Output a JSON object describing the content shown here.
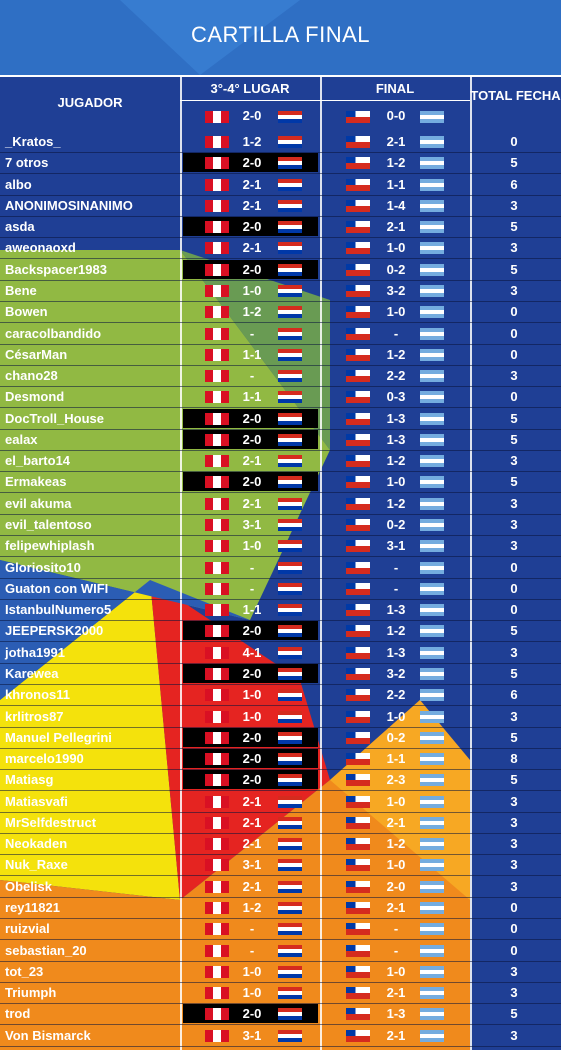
{
  "header": {
    "title": "CARTILLA FINAL",
    "player": "JUGADOR",
    "third_place": "3°-4° LUGAR",
    "third_place_result": "2-0",
    "final": "FINAL",
    "final_result": "0-0",
    "total": "TOTAL FECHA"
  },
  "table": {
    "rows": [
      [
        "_Kratos_",
        "1-2",
        "2-1",
        "0"
      ],
      [
        "7 otros",
        "2-0",
        "1-2",
        "5"
      ],
      [
        "albo",
        "2-1",
        "1-1",
        "6"
      ],
      [
        "ANONIMOSINANIMO",
        "2-1",
        "1-4",
        "3"
      ],
      [
        "asda",
        "2-0",
        "2-1",
        "5"
      ],
      [
        "aweonaoxd",
        "2-1",
        "1-0",
        "3"
      ],
      [
        "Backspacer1983",
        "2-0",
        "0-2",
        "5"
      ],
      [
        "Bene",
        "1-0",
        "3-2",
        "3"
      ],
      [
        "Bowen",
        "1-2",
        "1-0",
        "0"
      ],
      [
        "caracolbandido",
        "-",
        "-",
        "0"
      ],
      [
        "CésarMan",
        "1-1",
        "1-2",
        "0"
      ],
      [
        "chano28",
        "-",
        "2-2",
        "3"
      ],
      [
        "Desmond",
        "1-1",
        "0-3",
        "0"
      ],
      [
        "DocTroll_House",
        "2-0",
        "1-3",
        "5"
      ],
      [
        "ealax",
        "2-0",
        "1-3",
        "5"
      ],
      [
        "el_barto14",
        "2-1",
        "1-2",
        "3"
      ],
      [
        "Ermakeas",
        "2-0",
        "1-0",
        "5"
      ],
      [
        "evil akuma",
        "2-1",
        "1-2",
        "3"
      ],
      [
        "evil_talentoso",
        "3-1",
        "0-2",
        "3"
      ],
      [
        "felipewhiplash",
        "1-0",
        "3-1",
        "3"
      ],
      [
        "Gloriosito10",
        "-",
        "-",
        "0"
      ],
      [
        "Guaton con WIFI",
        "-",
        "-",
        "0"
      ],
      [
        "IstanbulNumero5",
        "1-1",
        "1-3",
        "0"
      ],
      [
        "JEEPERSK2000",
        "2-0",
        "1-2",
        "5"
      ],
      [
        "jotha1991",
        "4-1",
        "1-3",
        "3"
      ],
      [
        "Karewea",
        "2-0",
        "3-2",
        "5"
      ],
      [
        "khronos11",
        "1-0",
        "2-2",
        "6"
      ],
      [
        "krlitros87",
        "1-0",
        "1-0",
        "3"
      ],
      [
        "Manuel Pellegrini",
        "2-0",
        "0-2",
        "5"
      ],
      [
        "marcelo1990",
        "2-0",
        "1-1",
        "8"
      ],
      [
        "Matiasg",
        "2-0",
        "2-3",
        "5"
      ],
      [
        "Matiasvafi",
        "2-1",
        "1-0",
        "3"
      ],
      [
        "MrSelfdestruct",
        "2-1",
        "2-1",
        "3"
      ],
      [
        "Neokaden",
        "2-1",
        "1-2",
        "3"
      ],
      [
        "Nuk_Raxe",
        "3-1",
        "1-0",
        "3"
      ],
      [
        "Obelisk",
        "2-1",
        "2-0",
        "3"
      ],
      [
        "rey11821",
        "1-2",
        "2-1",
        "0"
      ],
      [
        "ruizvial",
        "-",
        "-",
        "0"
      ],
      [
        "sebastian_20",
        "-",
        "-",
        "0"
      ],
      [
        "tot_23",
        "1-0",
        "1-0",
        "3"
      ],
      [
        "Triumph",
        "1-0",
        "2-1",
        "3"
      ],
      [
        "trod",
        "2-0",
        "1-3",
        "5"
      ],
      [
        "Von Bismarck",
        "3-1",
        "2-1",
        "3"
      ]
    ]
  }
}
